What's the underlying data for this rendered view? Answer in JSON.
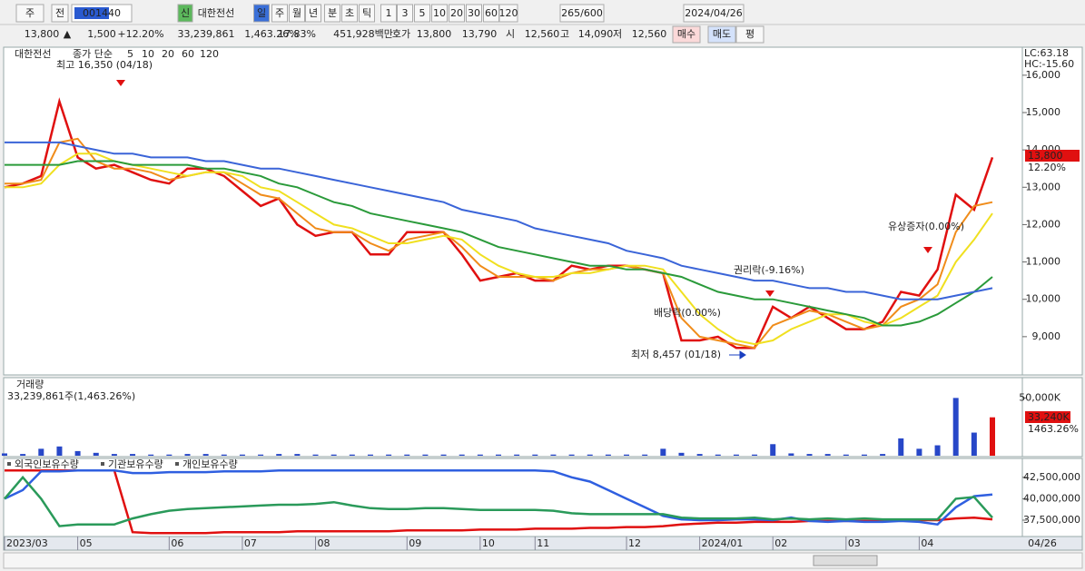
{
  "toolbar": {
    "items": [
      "주",
      "전",
      "001440",
      "신",
      "대한전선",
      "일",
      "주",
      "월",
      "년",
      "분",
      "초",
      "틱",
      "1",
      "3",
      "5",
      "10",
      "20",
      "30",
      "60",
      "120",
      "265/600",
      "2024/04/26"
    ]
  },
  "quote_bar": {
    "items": [
      "13,800",
      "▲",
      "1,500",
      "+12.20%",
      "33,239,861",
      "1,463.26%",
      "17.83%",
      "451,928백만",
      "호가",
      "13,800",
      "13,790",
      "시",
      "12,560",
      "고",
      "14,090",
      "저",
      "12,560",
      "매수",
      "매도",
      "평"
    ]
  },
  "chart_data": [
    {
      "type": "line",
      "title": "대한전선",
      "legend_title": "종가 단순",
      "categories": [
        "2023/03",
        null,
        null,
        null,
        "05",
        null,
        null,
        null,
        null,
        "06",
        null,
        null,
        null,
        "07",
        null,
        null,
        null,
        "08",
        null,
        null,
        null,
        null,
        "09",
        null,
        null,
        null,
        "10",
        null,
        null,
        "11",
        null,
        null,
        null,
        null,
        "12",
        null,
        null,
        null,
        "2024/01",
        null,
        null,
        null,
        "02",
        null,
        null,
        null,
        "03",
        null,
        null,
        null,
        "04",
        null,
        null,
        null,
        null
      ],
      "x_end_label": "04/26",
      "series": [
        {
          "name": "5",
          "color": "#e01010",
          "values": [
            13000,
            13100,
            13300,
            15300,
            13800,
            13500,
            13600,
            13400,
            13200,
            13100,
            13500,
            13500,
            13300,
            12900,
            12500,
            12700,
            12000,
            11700,
            11800,
            11800,
            11200,
            11200,
            11800,
            11800,
            11800,
            11200,
            10500,
            10600,
            10700,
            10500,
            10500,
            10900,
            10800,
            10900,
            10900,
            10800,
            10700,
            8900,
            8900,
            9000,
            8700,
            8700,
            9800,
            9500,
            9800,
            9500,
            9200,
            9200,
            9400,
            10200,
            10100,
            10800,
            12800,
            12400,
            13800
          ]
        },
        {
          "name": "10",
          "color": "#f08c1a",
          "values": [
            13100,
            13100,
            13200,
            14200,
            14300,
            13700,
            13500,
            13500,
            13400,
            13200,
            13300,
            13400,
            13400,
            13100,
            12800,
            12700,
            12300,
            11900,
            11800,
            11800,
            11500,
            11300,
            11600,
            11700,
            11800,
            11400,
            10900,
            10600,
            10600,
            10600,
            10500,
            10700,
            10800,
            10800,
            10900,
            10800,
            10700,
            9500,
            9000,
            8900,
            8800,
            8700,
            9300,
            9500,
            9700,
            9600,
            9400,
            9200,
            9300,
            9800,
            10000,
            10400,
            11800,
            12500,
            12600
          ]
        },
        {
          "name": "20",
          "color": "#f0e020",
          "values": [
            13000,
            13000,
            13100,
            13600,
            13900,
            13900,
            13700,
            13600,
            13500,
            13400,
            13300,
            13400,
            13400,
            13300,
            13000,
            12900,
            12600,
            12300,
            12000,
            11900,
            11700,
            11500,
            11500,
            11600,
            11700,
            11600,
            11200,
            10900,
            10700,
            10600,
            10600,
            10700,
            10700,
            10800,
            10900,
            10900,
            10800,
            10200,
            9600,
            9200,
            8900,
            8800,
            8900,
            9200,
            9400,
            9600,
            9600,
            9400,
            9300,
            9500,
            9800,
            10100,
            11000,
            11600,
            12300
          ]
        },
        {
          "name": "60",
          "color": "#2a9a3a",
          "values": [
            13600,
            13600,
            13600,
            13600,
            13700,
            13700,
            13700,
            13600,
            13600,
            13600,
            13600,
            13500,
            13500,
            13400,
            13300,
            13100,
            13000,
            12800,
            12600,
            12500,
            12300,
            12200,
            12100,
            12000,
            11900,
            11800,
            11600,
            11400,
            11300,
            11200,
            11100,
            11000,
            10900,
            10900,
            10800,
            10800,
            10700,
            10600,
            10400,
            10200,
            10100,
            10000,
            10000,
            9900,
            9800,
            9700,
            9600,
            9500,
            9300,
            9300,
            9400,
            9600,
            9900,
            10200,
            10600
          ]
        },
        {
          "name": "120",
          "color": "#3a64d8",
          "values": [
            14200,
            14200,
            14200,
            14200,
            14100,
            14000,
            13900,
            13900,
            13800,
            13800,
            13800,
            13700,
            13700,
            13600,
            13500,
            13500,
            13400,
            13300,
            13200,
            13100,
            13000,
            12900,
            12800,
            12700,
            12600,
            12400,
            12300,
            12200,
            12100,
            11900,
            11800,
            11700,
            11600,
            11500,
            11300,
            11200,
            11100,
            10900,
            10800,
            10700,
            10600,
            10500,
            10500,
            10400,
            10300,
            10300,
            10200,
            10200,
            10100,
            10000,
            10000,
            10000,
            10100,
            10200,
            10300
          ]
        }
      ],
      "ylim": [
        8000,
        16750
      ],
      "yticks": [
        {
          "value": 9000,
          "label": "9,000"
        },
        {
          "value": 10000,
          "label": "10,000"
        },
        {
          "value": 11000,
          "label": "11,000"
        },
        {
          "value": 12000,
          "label": "12,000"
        },
        {
          "value": 13000,
          "label": "13,000"
        },
        {
          "value": 14000,
          "label": "14,000"
        },
        {
          "value": 15000,
          "label": "15,000"
        },
        {
          "value": 16000,
          "label": "16,000"
        }
      ],
      "annotations": [
        "최고 16,350 (04/18)",
        "최저 8,457 (01/18)",
        "배당락(0.00%)",
        "권리락(-9.16%)",
        "유상증자(0.00%)"
      ],
      "right_labels": [
        "LC:63.18",
        "HC:-15.60"
      ],
      "last_tag": [
        "13,800",
        "12.20%"
      ]
    },
    {
      "type": "bar",
      "title": "거래량",
      "subtitle": "33,239,861주(1,463.26%)",
      "color": "#2747c8",
      "values": [
        2000,
        1500,
        6000,
        8000,
        4000,
        2500,
        1500,
        1500,
        1000,
        1000,
        1500,
        1500,
        1000,
        1000,
        1000,
        1500,
        1500,
        1000,
        1000,
        1000,
        1000,
        1000,
        1000,
        1000,
        1000,
        1000,
        1000,
        1000,
        1000,
        1000,
        1000,
        1000,
        1000,
        1000,
        1000,
        1000,
        6000,
        2500,
        1500,
        1000,
        1000,
        1000,
        10000,
        2000,
        1500,
        1500,
        1000,
        1000,
        1500,
        15000,
        6000,
        9000,
        50000,
        20000,
        33240
      ],
      "ylim": [
        0,
        66000
      ],
      "yticks": [
        {
          "value": 50000,
          "label": "50,000K"
        }
      ],
      "last_tag": [
        "33,240K",
        "1463.26%"
      ]
    },
    {
      "type": "line",
      "series": [
        {
          "name": "외국인보유수량",
          "color": "#e01010",
          "values": [
            43300000,
            43300000,
            43300000,
            43300000,
            43300000,
            43300000,
            43300000,
            36100000,
            36000000,
            36000000,
            36000000,
            36000000,
            36100000,
            36100000,
            36100000,
            36100000,
            36200000,
            36200000,
            36200000,
            36200000,
            36200000,
            36200000,
            36300000,
            36300000,
            36300000,
            36300000,
            36400000,
            36400000,
            36400000,
            36500000,
            36500000,
            36500000,
            36600000,
            36600000,
            36700000,
            36700000,
            36800000,
            37000000,
            37100000,
            37200000,
            37200000,
            37300000,
            37300000,
            37300000,
            37400000,
            37400000,
            37400000,
            37400000,
            37400000,
            37500000,
            37500000,
            37500000,
            37700000,
            37800000,
            37600000
          ]
        },
        {
          "name": "기관보유수량",
          "color": "#2f5fe0",
          "values": [
            40000000,
            41000000,
            43200000,
            43200000,
            43300000,
            43300000,
            43300000,
            43000000,
            43000000,
            43100000,
            43100000,
            43100000,
            43200000,
            43200000,
            43200000,
            43300000,
            43300000,
            43300000,
            43300000,
            43300000,
            43300000,
            43300000,
            43300000,
            43300000,
            43300000,
            43300000,
            43300000,
            43300000,
            43300000,
            43300000,
            43200000,
            42500000,
            42000000,
            41000000,
            40000000,
            39000000,
            38000000,
            37600000,
            37500000,
            37500000,
            37600000,
            37600000,
            37500000,
            37800000,
            37400000,
            37300000,
            37400000,
            37300000,
            37300000,
            37400000,
            37300000,
            37000000,
            39000000,
            40300000,
            40500000
          ]
        },
        {
          "name": "개인보유수량",
          "color": "#2a9a5a",
          "values": [
            40000000,
            42500000,
            40000000,
            36800000,
            37000000,
            37000000,
            37000000,
            37700000,
            38200000,
            38600000,
            38800000,
            38900000,
            39000000,
            39100000,
            39200000,
            39300000,
            39300000,
            39400000,
            39600000,
            39200000,
            38900000,
            38800000,
            38800000,
            38900000,
            38900000,
            38800000,
            38700000,
            38700000,
            38700000,
            38700000,
            38600000,
            38300000,
            38200000,
            38200000,
            38200000,
            38200000,
            38200000,
            37800000,
            37700000,
            37700000,
            37700000,
            37800000,
            37600000,
            37700000,
            37600000,
            37700000,
            37600000,
            37700000,
            37600000,
            37600000,
            37600000,
            37600000,
            40000000,
            40200000,
            37800000
          ]
        }
      ],
      "ylim": [
        35700000,
        44700000
      ],
      "yticks": [
        {
          "value": 37500000,
          "label": "37,500,000"
        },
        {
          "value": 40000000,
          "label": "40,000,000"
        },
        {
          "value": 42500000,
          "label": "42,500,000"
        }
      ]
    }
  ]
}
